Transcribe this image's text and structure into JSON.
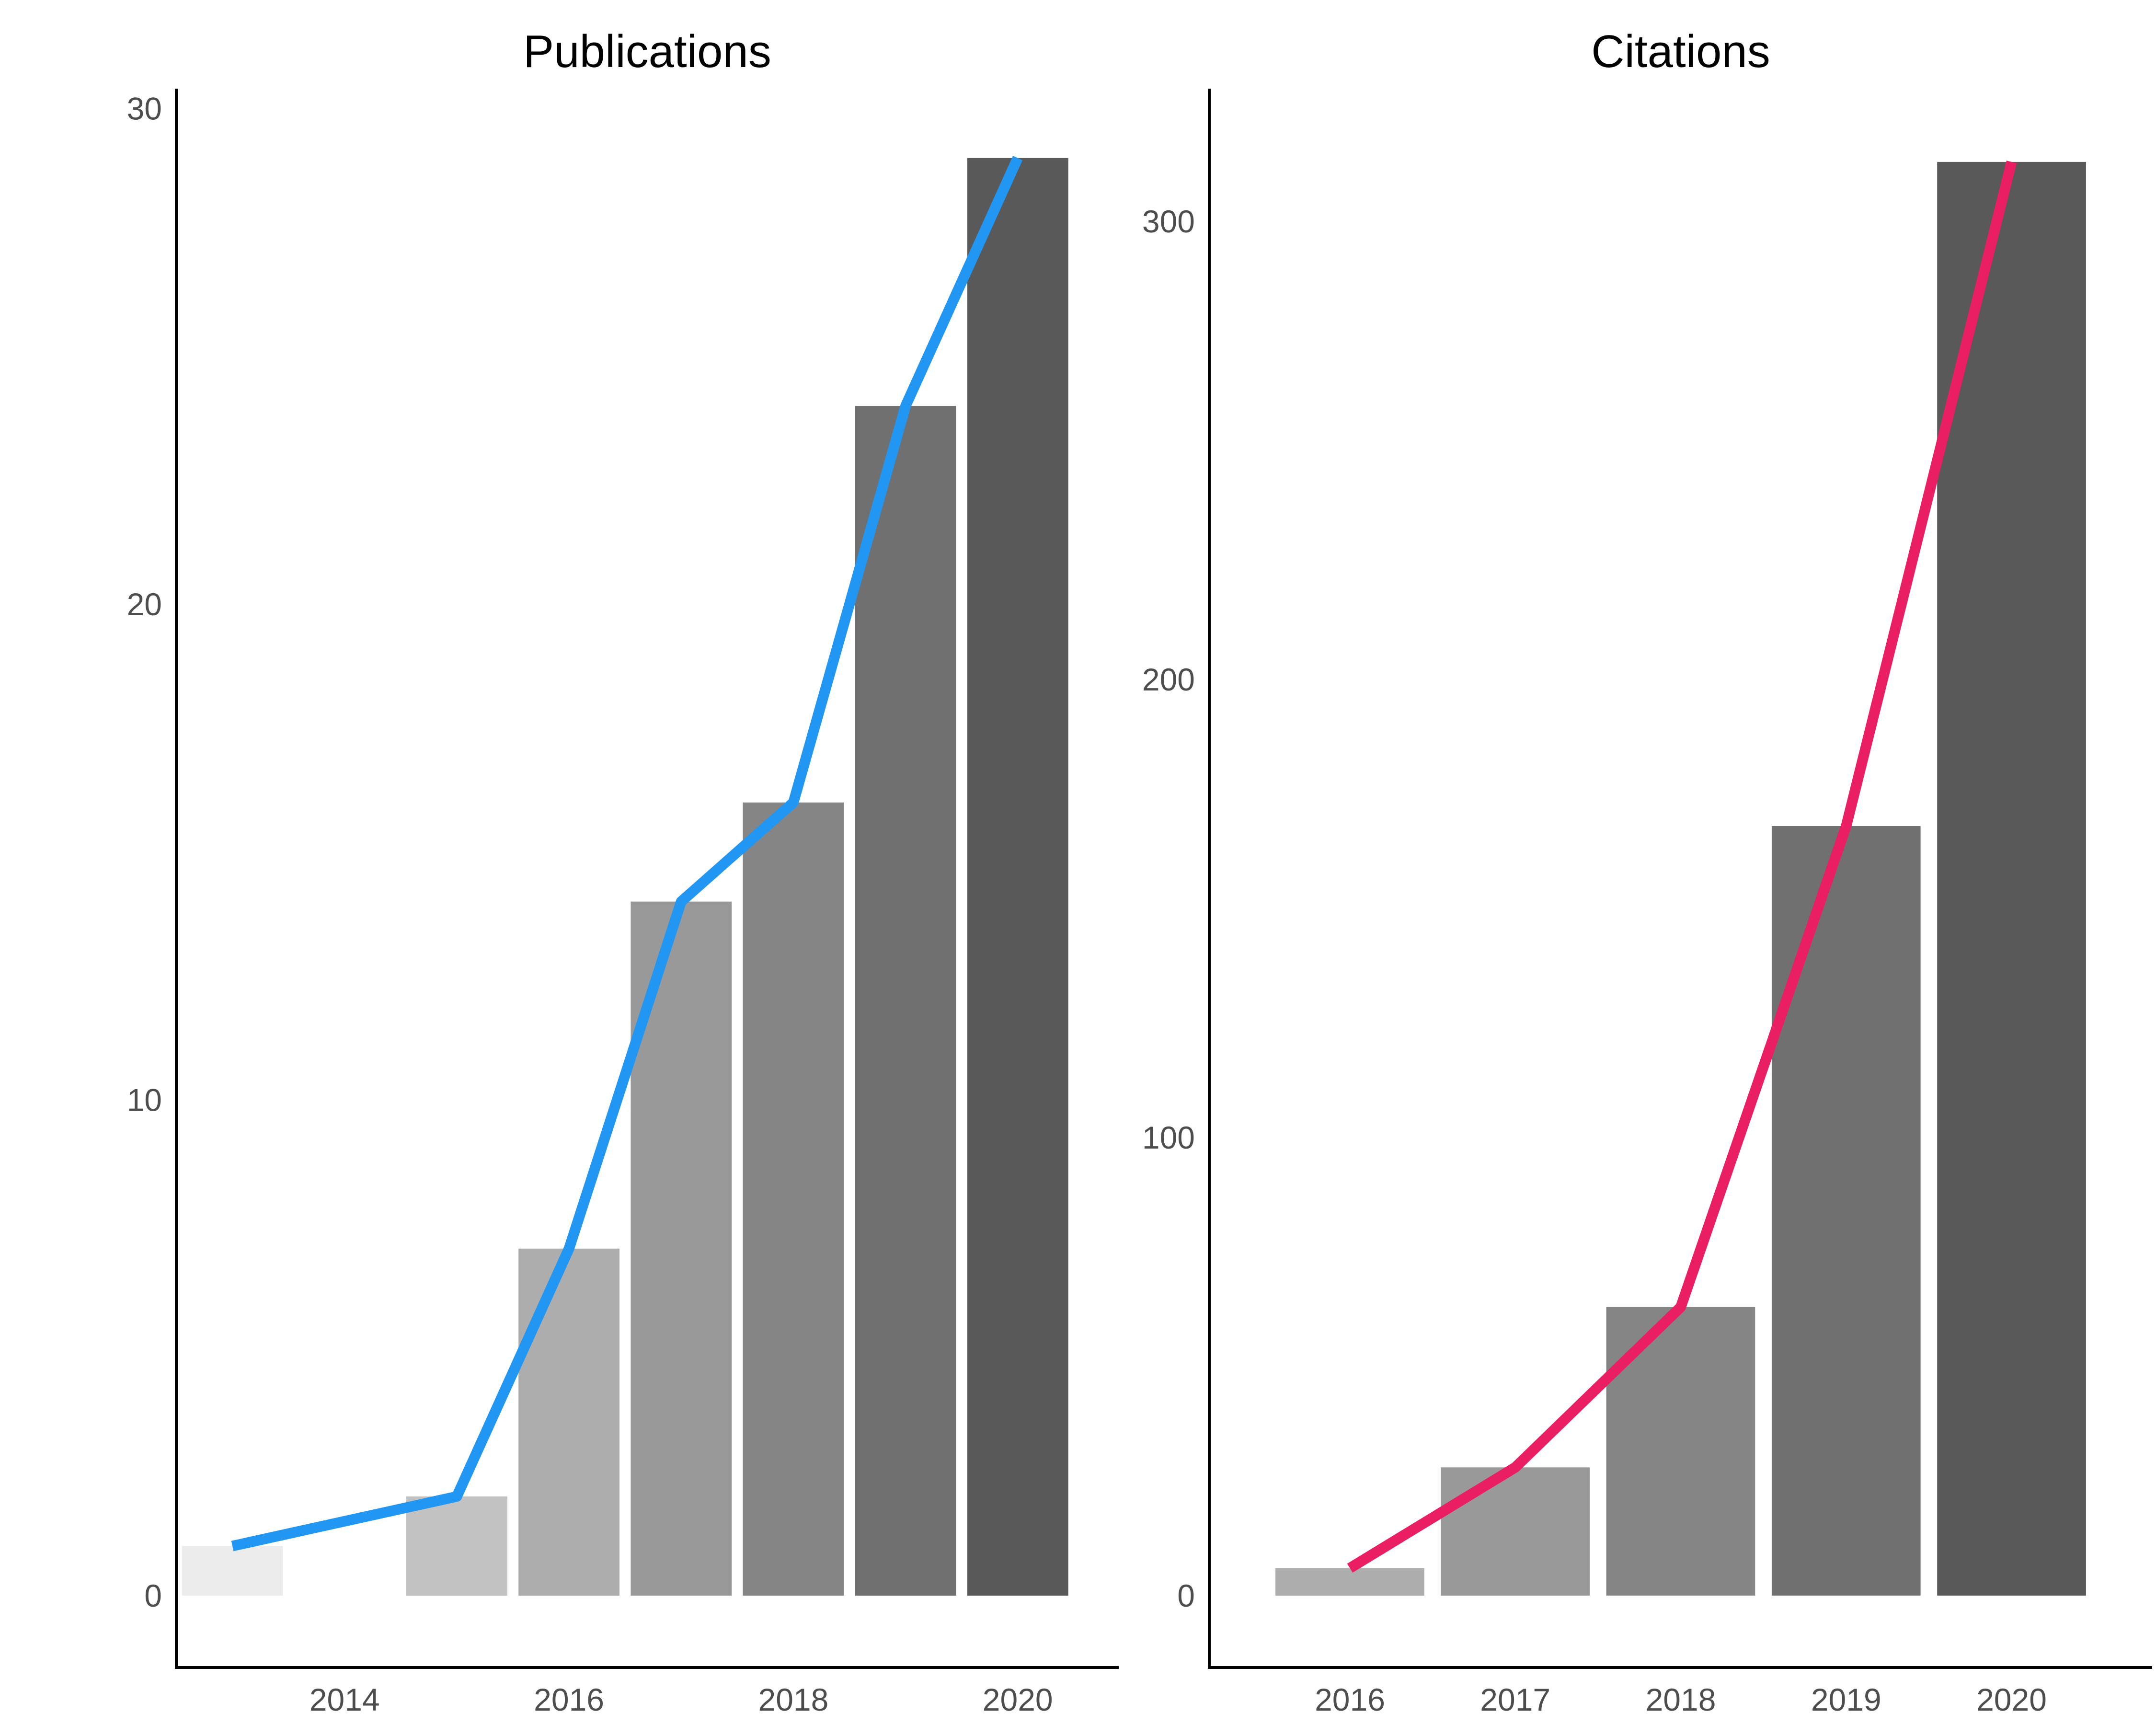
{
  "chart_data": [
    {
      "type": "bar",
      "title": "Publications",
      "xlabel": "",
      "ylabel": "",
      "categories": [
        "2013",
        "2014",
        "2015",
        "2016",
        "2017",
        "2018",
        "2019",
        "2020"
      ],
      "values": [
        1,
        0,
        2,
        7,
        14,
        16,
        24,
        29
      ],
      "bar_colors": [
        "#ebebeb",
        "#d6d6d6",
        "#c2c2c2",
        "#adadad",
        "#999999",
        "#858585",
        "#707070",
        "#595959"
      ],
      "line": {
        "x": [
          2013,
          2015,
          2016,
          2017,
          2018,
          2019,
          2020
        ],
        "y": [
          1,
          2,
          7,
          14,
          16,
          24,
          29
        ],
        "color": "#2196f3"
      },
      "xlim": [
        2012.5,
        2020.9
      ],
      "ylim": [
        -1.45,
        30.4
      ],
      "xticks": [
        2014,
        2016,
        2018,
        2020
      ],
      "yticks": [
        0,
        10,
        20,
        30
      ],
      "grid": false
    },
    {
      "type": "bar",
      "title": "Citations",
      "xlabel": "",
      "ylabel": "",
      "categories": [
        "2016",
        "2017",
        "2018",
        "2019",
        "2020"
      ],
      "values": [
        6,
        28,
        63,
        168,
        313
      ],
      "bar_colors": [
        "#adadad",
        "#999999",
        "#858585",
        "#707070",
        "#595959"
      ],
      "line": {
        "x": [
          2016,
          2017,
          2018,
          2019,
          2020
        ],
        "y": [
          6,
          28,
          63,
          168,
          313
        ],
        "color": "#e91e63"
      },
      "xlim": [
        2015.15,
        2020.85
      ],
      "ylim": [
        -15.7,
        329
      ],
      "xticks": [
        2016,
        2017,
        2018,
        2019,
        2020
      ],
      "yticks": [
        0,
        100,
        200,
        300
      ],
      "grid": false
    }
  ]
}
